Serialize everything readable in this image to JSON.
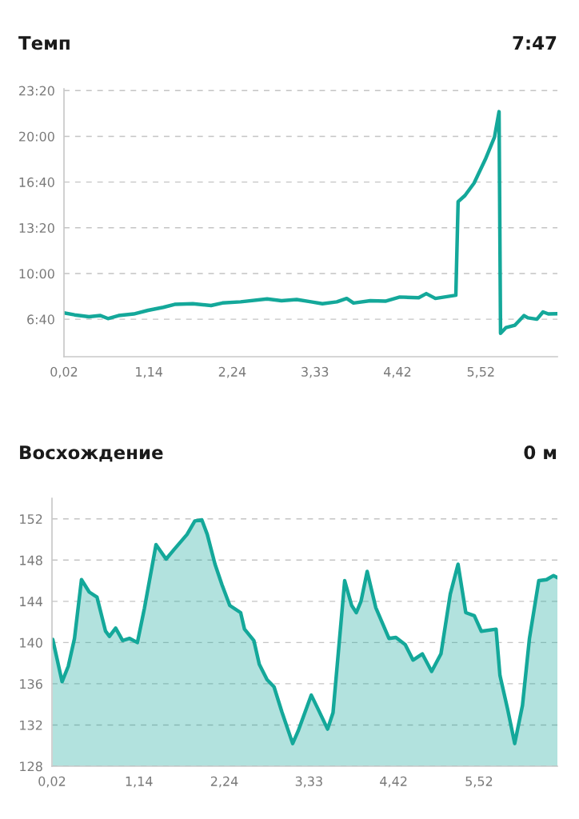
{
  "chart_data": [
    {
      "type": "line",
      "title": "Темп",
      "annotations": [
        "7:47"
      ],
      "x": [
        0.02,
        0.16,
        0.35,
        0.5,
        0.6,
        0.74,
        0.94,
        1.13,
        1.33,
        1.48,
        1.72,
        1.96,
        2.11,
        2.35,
        2.7,
        2.89,
        3.09,
        3.28,
        3.43,
        3.62,
        3.75,
        3.84,
        4.06,
        4.26,
        4.45,
        4.7,
        4.8,
        4.92,
        5.19,
        5.22,
        5.31,
        5.43,
        5.58,
        5.7,
        5.76,
        5.78,
        5.85,
        5.97,
        6.09,
        6.14,
        6.26,
        6.34,
        6.41,
        6.53
      ],
      "series": [
        {
          "color": "#14a89a",
          "values": [
            428,
            419,
            411,
            416,
            403,
            416,
            423,
            439,
            452,
            465,
            468,
            460,
            471,
            476,
            489,
            481,
            486,
            476,
            468,
            476,
            491,
            471,
            481,
            479,
            497,
            494,
            512,
            491,
            505,
            914,
            941,
            995,
            1100,
            1197,
            1308,
            338,
            363,
            374,
            416,
            406,
            400,
            432,
            423,
            424
          ]
        }
      ],
      "xlim": [
        0.02,
        6.53
      ],
      "xticks": [
        {
          "value": 0.02,
          "label": "0,02"
        },
        {
          "value": 1.14,
          "label": "1,14"
        },
        {
          "value": 2.24,
          "label": "2,24"
        },
        {
          "value": 3.33,
          "label": "3,33"
        },
        {
          "value": 4.42,
          "label": "4,42"
        },
        {
          "value": 5.52,
          "label": "5,52"
        }
      ],
      "ylim": [
        236,
        1408
      ],
      "yticks": [
        {
          "value": 400,
          "label": "6:40"
        },
        {
          "value": 600,
          "label": "10:00"
        },
        {
          "value": 800,
          "label": "13:20"
        },
        {
          "value": 1000,
          "label": "16:40"
        },
        {
          "value": 1200,
          "label": "20:00"
        },
        {
          "value": 1400,
          "label": "23:20"
        }
      ],
      "grid": "y"
    },
    {
      "type": "area",
      "title": "Восхождение",
      "annotations": [
        "0 м"
      ],
      "x": [
        0.03,
        0.15,
        0.23,
        0.31,
        0.4,
        0.5,
        0.6,
        0.71,
        0.76,
        0.84,
        0.93,
        1.02,
        1.12,
        1.21,
        1.36,
        1.49,
        1.59,
        1.76,
        1.86,
        1.95,
        2.02,
        2.12,
        2.21,
        2.31,
        2.45,
        2.5,
        2.62,
        2.69,
        2.79,
        2.88,
        2.98,
        3.12,
        3.19,
        3.36,
        3.45,
        3.57,
        3.64,
        3.79,
        3.88,
        3.94,
        4.0,
        4.08,
        4.19,
        4.36,
        4.45,
        4.57,
        4.67,
        4.79,
        4.91,
        5.03,
        5.15,
        5.25,
        5.35,
        5.46,
        5.55,
        5.74,
        5.79,
        5.89,
        5.98,
        6.08,
        6.17,
        6.29,
        6.39,
        6.48,
        6.53
      ],
      "series": [
        {
          "color": "#14a89a",
          "values": [
            140.3,
            136.2,
            137.7,
            140.4,
            146.1,
            144.9,
            144.4,
            141.1,
            140.6,
            141.4,
            140.2,
            140.4,
            140.0,
            143.3,
            149.5,
            148.1,
            149.0,
            150.5,
            151.8,
            151.9,
            150.5,
            147.6,
            145.6,
            143.6,
            142.9,
            141.3,
            140.2,
            137.9,
            136.4,
            135.7,
            133.3,
            130.2,
            131.4,
            134.9,
            133.5,
            131.6,
            133.2,
            146.0,
            143.6,
            142.9,
            144.0,
            146.9,
            143.4,
            140.4,
            140.5,
            139.8,
            138.3,
            138.9,
            137.2,
            138.9,
            144.7,
            147.6,
            142.9,
            142.6,
            141.1,
            141.3,
            136.8,
            133.5,
            130.2,
            133.9,
            140.4,
            146.0,
            146.1,
            146.5,
            146.3
          ]
        }
      ],
      "xlim": [
        0.02,
        6.53
      ],
      "xticks": [
        {
          "value": 0.02,
          "label": "0,02"
        },
        {
          "value": 1.14,
          "label": "1,14"
        },
        {
          "value": 2.24,
          "label": "2,24"
        },
        {
          "value": 3.33,
          "label": "3,33"
        },
        {
          "value": 4.42,
          "label": "4,42"
        },
        {
          "value": 5.52,
          "label": "5,52"
        }
      ],
      "ylim": [
        128,
        154
      ],
      "yticks": [
        128,
        132,
        136,
        140,
        144,
        148,
        152
      ],
      "grid": "y"
    }
  ]
}
